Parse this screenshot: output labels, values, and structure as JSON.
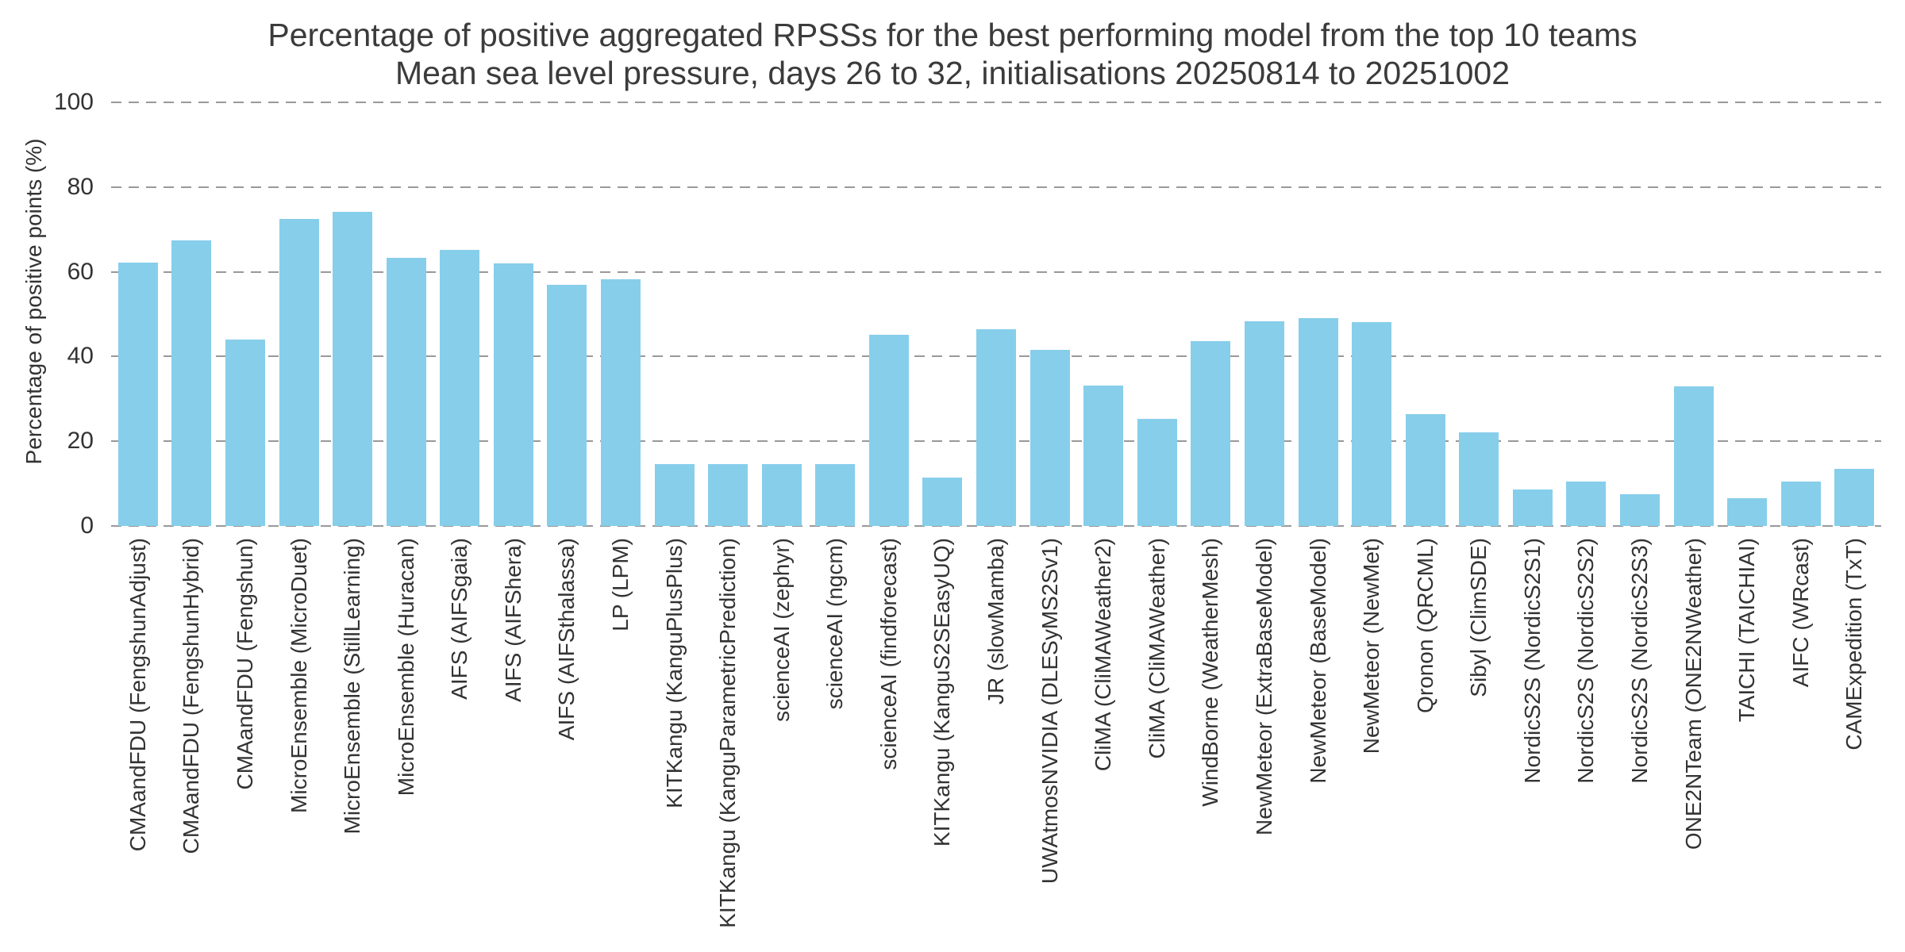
{
  "title": "Percentage of positive aggregated RPSSs for the best performing model from the top 10 teams",
  "subtitle": "Mean sea level pressure, days 26 to 32, initialisations 20250814 to 20251002",
  "chart_data": {
    "type": "bar",
    "title": "Percentage of positive aggregated RPSSs for the best performing model from the top 10 teams",
    "subtitle": "Mean sea level pressure, days 26 to 32, initialisations 20250814 to 20251002",
    "xlabel": "",
    "ylabel": "Percentage of positive points (%)",
    "ylim": [
      0,
      100
    ],
    "yticks": [
      0,
      20,
      40,
      60,
      80,
      100
    ],
    "grid": "horizontal-dashed",
    "legend": "none",
    "bar_color": "#87CEEB",
    "gridline_color": "#999999",
    "text_color": "#333333",
    "title_color": "#3b3b3b",
    "categories": [
      "CMAandFDU (FengshunAdjust)",
      "CMAandFDU (FengshunHybrid)",
      "CMAandFDU (Fengshun)",
      "MicroEnsemble (MicroDuet)",
      "MicroEnsemble (StillLearning)",
      "MicroEnsemble (Huracan)",
      "AIFS (AIFSgaia)",
      "AIFS (AIFShera)",
      "AIFS (AIFSthalassa)",
      "LP (LPM)",
      "KITKangu (KanguPlusPlus)",
      "KITKangu (KanguParametricPrediction)",
      "scienceAI (zephyr)",
      "scienceAI (ngcm)",
      "scienceAI (findforecast)",
      "KITKangu (KanguS2SEasyUQ)",
      "JR (slowMamba)",
      "UWAtmosNVIDIA (DLESyMS2Sv1)",
      "CliMA (CliMAWeather2)",
      "CliMA (CliMAWeather)",
      "WindBorne (WeatherMesh)",
      "NewMeteor (ExtraBaseModel)",
      "NewMeteor (BaseModel)",
      "NewMeteor (NewMet)",
      "Qronon (QRCML)",
      "Sibyl (ClimSDE)",
      "NordicS2S (NordicS2S1)",
      "NordicS2S (NordicS2S2)",
      "NordicS2S (NordicS2S3)",
      "ONE2NTeam (ONE2NWeather)",
      "TAICHI (TAICHIAI)",
      "AIFC (WRcast)",
      "CAMExpedition (TxT)"
    ],
    "values": [
      62.2,
      67.4,
      44.1,
      72.5,
      74.2,
      63.3,
      65.1,
      62.0,
      56.9,
      58.3,
      14.7,
      14.7,
      14.7,
      14.7,
      45.2,
      11.5,
      46.4,
      41.6,
      33.2,
      25.3,
      43.7,
      48.3,
      49.0,
      48.2,
      26.4,
      22.1,
      8.7,
      10.5,
      7.5,
      32.9,
      6.5,
      10.5,
      13.4
    ]
  }
}
